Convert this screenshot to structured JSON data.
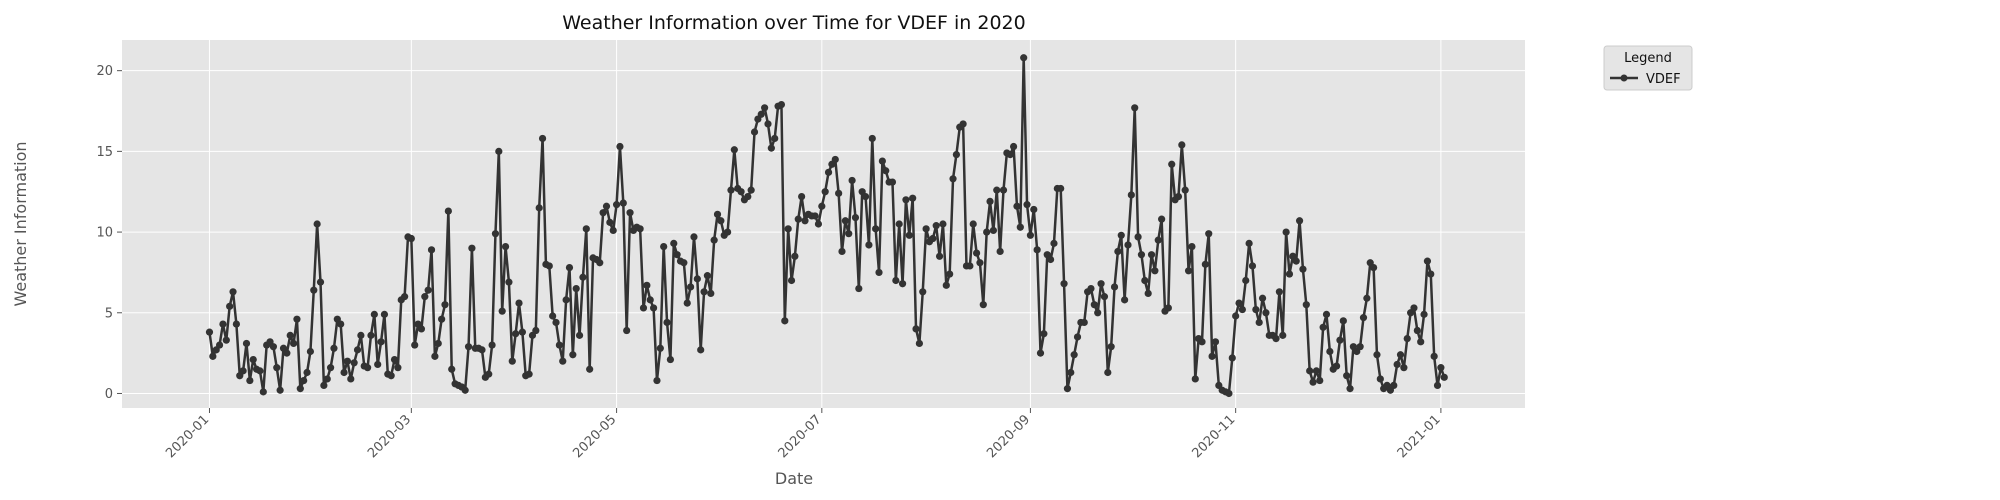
{
  "chart_data": {
    "type": "line",
    "title": "Weather Information over Time for VDEF in 2020",
    "xlabel": "Date",
    "ylabel": "Weather Information",
    "x_range": [
      "2019-12-06",
      "2021-01-26"
    ],
    "ylim": [
      -0.9,
      21.9
    ],
    "y_ticks": [
      0,
      5,
      10,
      15,
      20
    ],
    "x_ticks": [
      "2020-01",
      "2020-03",
      "2020-05",
      "2020-07",
      "2020-09",
      "2020-11",
      "2021-01"
    ],
    "grid": true,
    "legend": {
      "title": "Legend",
      "placement": "outside-top-right"
    },
    "colors": {
      "line": "#333333",
      "plot_bg": "#e5e5e5",
      "grid": "#ffffff",
      "text": "#555555"
    },
    "series": [
      {
        "name": "VDEF",
        "x_start": "2020-01-01",
        "x_end": "2020-12-31",
        "values": [
          3.8,
          2.3,
          2.7,
          3.0,
          4.3,
          3.3,
          5.4,
          6.3,
          4.3,
          1.1,
          1.4,
          3.1,
          0.8,
          2.1,
          1.5,
          1.4,
          0.1,
          3.0,
          3.2,
          2.9,
          1.6,
          0.2,
          2.8,
          2.5,
          3.6,
          3.1,
          4.6,
          0.3,
          0.8,
          1.3,
          2.6,
          6.4,
          10.5,
          6.9,
          0.5,
          0.9,
          1.6,
          2.8,
          4.6,
          4.3,
          1.3,
          2.0,
          0.9,
          1.9,
          2.7,
          3.6,
          1.7,
          1.6,
          3.6,
          4.9,
          1.8,
          3.2,
          4.9,
          1.2,
          1.1,
          2.1,
          1.6,
          5.8,
          6.0,
          9.7,
          9.6,
          3.0,
          4.3,
          4.0,
          6.0,
          6.4,
          8.9,
          2.3,
          3.1,
          4.6,
          5.5,
          11.3,
          1.5,
          0.6,
          0.5,
          0.4,
          0.2,
          2.9,
          9.0,
          2.8,
          2.8,
          2.7,
          1.0,
          1.2,
          3.0,
          9.9,
          15.0,
          5.1,
          9.1,
          6.9,
          2.0,
          3.7,
          5.6,
          3.8,
          1.1,
          1.2,
          3.6,
          3.9,
          11.5,
          15.8,
          8.0,
          7.9,
          4.8,
          4.4,
          3.0,
          2.0,
          5.8,
          7.8,
          2.4,
          6.5,
          3.6,
          7.2,
          10.2,
          1.5,
          8.4,
          8.3,
          8.1,
          11.2,
          11.6,
          10.6,
          10.1,
          11.7,
          15.3,
          11.8,
          3.9,
          11.2,
          10.1,
          10.3,
          10.2,
          5.3,
          6.7,
          5.8,
          5.3,
          0.8,
          2.8,
          9.1,
          4.4,
          2.1,
          9.3,
          8.6,
          8.2,
          8.1,
          5.6,
          6.6,
          9.7,
          7.1,
          2.7,
          6.3,
          7.3,
          6.2,
          9.5,
          11.1,
          10.7,
          9.8,
          10.0,
          12.6,
          15.1,
          12.7,
          12.5,
          12.0,
          12.2,
          12.6,
          16.2,
          17.0,
          17.3,
          17.7,
          16.7,
          15.2,
          15.8,
          17.8,
          17.9,
          4.5,
          10.2,
          7.0,
          8.5,
          10.8,
          12.2,
          10.7,
          11.1,
          11.0,
          11.0,
          10.5,
          11.6,
          12.5,
          13.7,
          14.2,
          14.5,
          12.4,
          8.8,
          10.7,
          9.9,
          13.2,
          10.9,
          6.5,
          12.5,
          12.2,
          9.2,
          15.8,
          10.2,
          7.5,
          14.4,
          13.8,
          13.1,
          13.1,
          7.0,
          10.5,
          6.8,
          12.0,
          9.8,
          12.1,
          4.0,
          3.1,
          6.3,
          10.2,
          9.4,
          9.6,
          10.4,
          8.5,
          10.5,
          6.7,
          7.4,
          13.3,
          14.8,
          16.5,
          16.7,
          7.9,
          7.9,
          10.5,
          8.7,
          8.1,
          5.5,
          10.0,
          11.9,
          10.1,
          12.6,
          8.8,
          12.6,
          14.9,
          14.8,
          15.3,
          11.6,
          10.3,
          20.8,
          11.7,
          9.8,
          11.4,
          8.9,
          2.5,
          3.7,
          8.6,
          8.3,
          9.3,
          12.7,
          12.7,
          6.8,
          0.3,
          1.3,
          2.4,
          3.5,
          4.4,
          4.4,
          6.3,
          6.5,
          5.5,
          5.0,
          6.8,
          6.0,
          1.3,
          2.9,
          6.6,
          8.8,
          9.8,
          5.8,
          9.2,
          12.3,
          17.7,
          9.7,
          8.6,
          7.0,
          6.2,
          8.6,
          7.6,
          9.5,
          10.8,
          5.1,
          5.3,
          14.2,
          12.0,
          12.2,
          15.4,
          12.6,
          7.6,
          9.1,
          0.9,
          3.4,
          3.2,
          8.0,
          9.9,
          2.3,
          3.2,
          0.5,
          0.2,
          0.1,
          0.0,
          2.2,
          4.8,
          5.6,
          5.2,
          7.0,
          9.3,
          7.9,
          5.2,
          4.4,
          5.9,
          5.0,
          3.6,
          3.6,
          3.4,
          6.3,
          3.6,
          10.0,
          7.4,
          8.5,
          8.2,
          10.7,
          7.7,
          5.5,
          1.4,
          0.7,
          1.4,
          0.8,
          4.1,
          4.9,
          2.6,
          1.5,
          1.7,
          3.3,
          4.5,
          1.1,
          0.3,
          2.9,
          2.6,
          2.9,
          4.7,
          5.9,
          8.1,
          7.8,
          2.4,
          0.9,
          0.3,
          0.5,
          0.2,
          0.5,
          1.8,
          2.4,
          1.6,
          3.4,
          5.0,
          5.3,
          3.9,
          3.2,
          4.9,
          8.2,
          7.4,
          2.3,
          0.5,
          1.6,
          1.0
        ]
      }
    ]
  }
}
